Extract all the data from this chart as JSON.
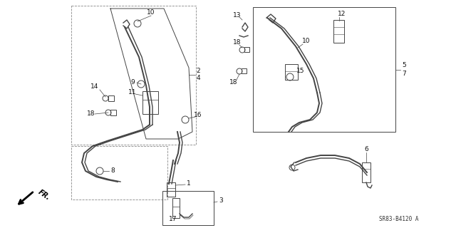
{
  "part_number": "SR83-B4120 A",
  "background_color": "#ffffff",
  "fig_width": 6.4,
  "fig_height": 3.2,
  "dpi": 100,
  "line_color": "#444444",
  "label_color": "#111111",
  "label_fontsize": 6.5
}
